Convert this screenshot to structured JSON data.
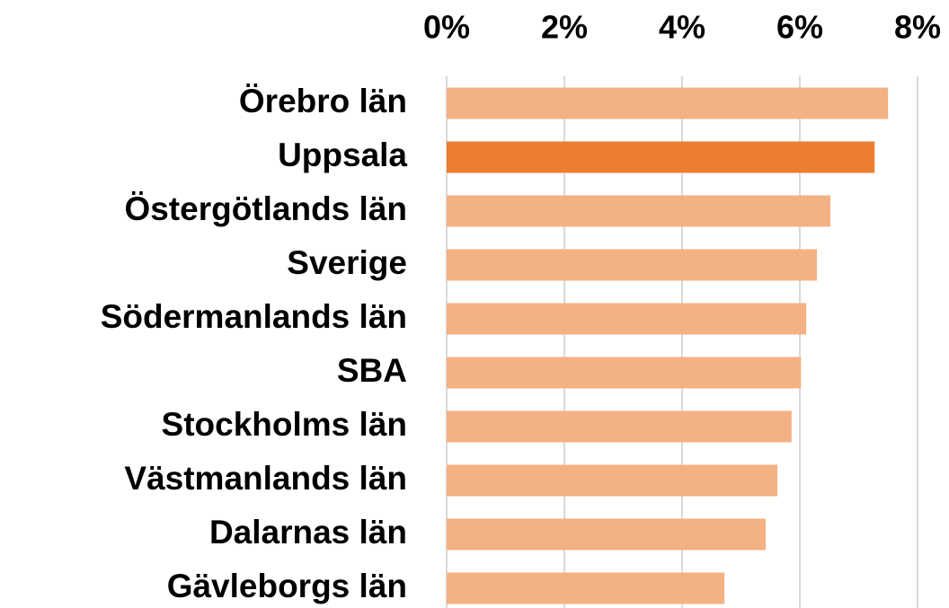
{
  "chart_data": {
    "type": "bar",
    "orientation": "horizontal",
    "categories": [
      "Örebro län",
      "Uppsala",
      "Östergötlands län",
      "Sverige",
      "Södermanlands län",
      "SBA",
      "Stockholms län",
      "Västmanlands län",
      "Dalarnas län",
      "Gävleborgs län"
    ],
    "values": [
      7.5,
      7.27,
      6.52,
      6.29,
      6.11,
      6.02,
      5.86,
      5.62,
      5.42,
      4.72
    ],
    "colors": [
      "#f4b183",
      "#ed7d31",
      "#f4b183",
      "#f4b183",
      "#f4b183",
      "#f4b183",
      "#f4b183",
      "#f4b183",
      "#f4b183",
      "#f4b183"
    ],
    "xlim": [
      0,
      8
    ],
    "xticks": [
      {
        "value": 0,
        "label": "0%"
      },
      {
        "value": 2,
        "label": "2%"
      },
      {
        "value": 4,
        "label": "4%"
      },
      {
        "value": 6,
        "label": "6%"
      },
      {
        "value": 8,
        "label": "8%"
      }
    ],
    "grid": true
  }
}
